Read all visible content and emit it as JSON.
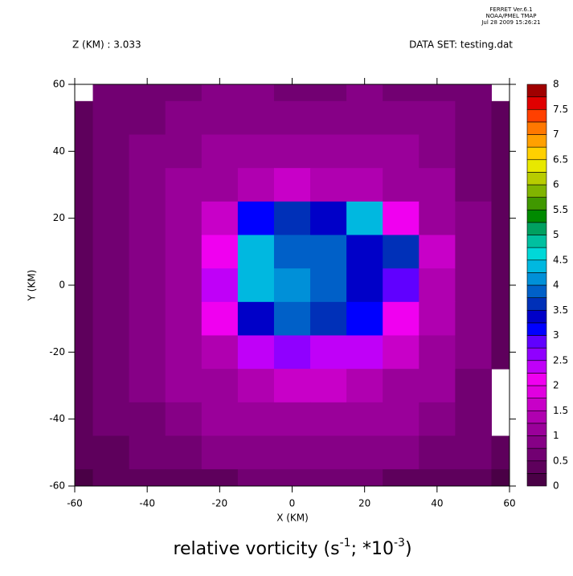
{
  "chart_data": {
    "type": "contour",
    "stamp": [
      "FERRET Ver.6.1",
      "NOAA/PMEL TMAP",
      "Jul 28 2009 15:26:21"
    ],
    "header_left": "Z (KM) : 3.033",
    "header_right": "DATA SET: testing.dat",
    "xlabel": "X (KM)",
    "ylabel": "Y (KM)",
    "title_parts": [
      "relative vorticity (s",
      "-1",
      "; *10",
      "-3",
      ")"
    ],
    "x": [
      -60,
      -50,
      -40,
      -30,
      -20,
      -10,
      0,
      10,
      20,
      30,
      40,
      50,
      60
    ],
    "y": [
      60,
      50,
      40,
      30,
      20,
      10,
      0,
      -10,
      -20,
      -30,
      -40,
      -50,
      -60
    ],
    "z": [
      [
        null,
        0.6,
        0.6,
        0.7,
        0.8,
        0.8,
        0.6,
        0.7,
        0.8,
        0.7,
        0.6,
        0.7,
        null
      ],
      [
        0.3,
        0.6,
        0.7,
        0.8,
        0.9,
        0.9,
        0.8,
        0.9,
        0.9,
        0.9,
        0.8,
        0.6,
        0.4
      ],
      [
        0.3,
        0.6,
        0.8,
        0.9,
        1.0,
        1.1,
        1.0,
        1.1,
        1.0,
        1.0,
        0.9,
        0.7,
        0.4
      ],
      [
        0.3,
        0.6,
        0.8,
        1.0,
        1.2,
        1.4,
        1.5,
        1.4,
        1.3,
        1.2,
        1.0,
        0.7,
        0.4
      ],
      [
        0.3,
        0.6,
        0.9,
        1.1,
        1.5,
        3.2,
        3.6,
        3.3,
        4.4,
        2.2,
        1.2,
        0.8,
        0.4
      ],
      [
        0.3,
        0.7,
        0.9,
        1.1,
        2.2,
        4.4,
        3.8,
        3.9,
        3.4,
        3.6,
        1.5,
        0.8,
        0.4
      ],
      [
        0.3,
        0.6,
        0.9,
        1.1,
        2.3,
        4.4,
        4.0,
        3.8,
        3.3,
        2.8,
        1.4,
        0.8,
        0.4
      ],
      [
        0.3,
        0.6,
        0.9,
        1.1,
        2.0,
        3.4,
        3.8,
        3.6,
        3.0,
        2.2,
        1.3,
        0.8,
        0.4
      ],
      [
        0.3,
        0.6,
        0.9,
        1.0,
        1.4,
        2.3,
        2.5,
        2.4,
        2.3,
        1.6,
        1.1,
        0.8,
        0.4
      ],
      [
        0.3,
        0.5,
        0.8,
        1.0,
        1.2,
        1.4,
        1.5,
        1.5,
        1.4,
        1.2,
        1.0,
        0.7,
        null
      ],
      [
        0.3,
        0.5,
        0.7,
        0.9,
        1.0,
        1.1,
        1.2,
        1.1,
        1.1,
        1.0,
        0.9,
        0.6,
        null
      ],
      [
        0.3,
        0.4,
        0.6,
        0.7,
        0.8,
        0.9,
        0.9,
        0.9,
        0.9,
        0.8,
        0.7,
        0.5,
        0.3
      ],
      [
        0.2,
        0.3,
        0.3,
        0.4,
        0.4,
        0.5,
        0.5,
        0.5,
        0.5,
        0.4,
        0.4,
        0.3,
        0.2
      ]
    ],
    "levels": [
      0,
      0.25,
      0.5,
      0.75,
      1,
      1.25,
      1.5,
      1.75,
      2,
      2.25,
      2.5,
      2.75,
      3,
      3.25,
      3.5,
      3.75,
      4,
      4.25,
      4.5,
      4.75,
      5,
      5.25,
      5.5,
      5.75,
      6,
      6.25,
      6.5,
      6.75,
      7,
      7.25,
      7.5,
      7.75,
      8
    ],
    "colors": [
      "#4a0046",
      "#5e005c",
      "#720072",
      "#860086",
      "#9a009a",
      "#b000b0",
      "#c800c8",
      "#e000e0",
      "#f000f0",
      "#c000f8",
      "#9000ff",
      "#6000ff",
      "#0000ff",
      "#0000c8",
      "#0030b8",
      "#0060c8",
      "#0090d8",
      "#00b8e0",
      "#00d8d8",
      "#00c0a0",
      "#00a060",
      "#008a00",
      "#409800",
      "#80b400",
      "#b8cc00",
      "#e8e800",
      "#ffd000",
      "#ffa000",
      "#ff7800",
      "#ff4000",
      "#e00000",
      "#a00000"
    ],
    "colorbar_ticks": [
      0,
      0.5,
      1,
      1.5,
      2,
      2.5,
      3,
      3.5,
      4,
      4.5,
      5,
      5.5,
      6,
      6.5,
      7,
      7.5,
      8
    ],
    "xlim": [
      -60,
      60
    ],
    "ylim": [
      -60,
      60
    ],
    "xticks": [
      -60,
      -40,
      -20,
      0,
      20,
      40,
      60
    ],
    "yticks": [
      -60,
      -40,
      -20,
      0,
      20,
      40,
      60
    ]
  }
}
